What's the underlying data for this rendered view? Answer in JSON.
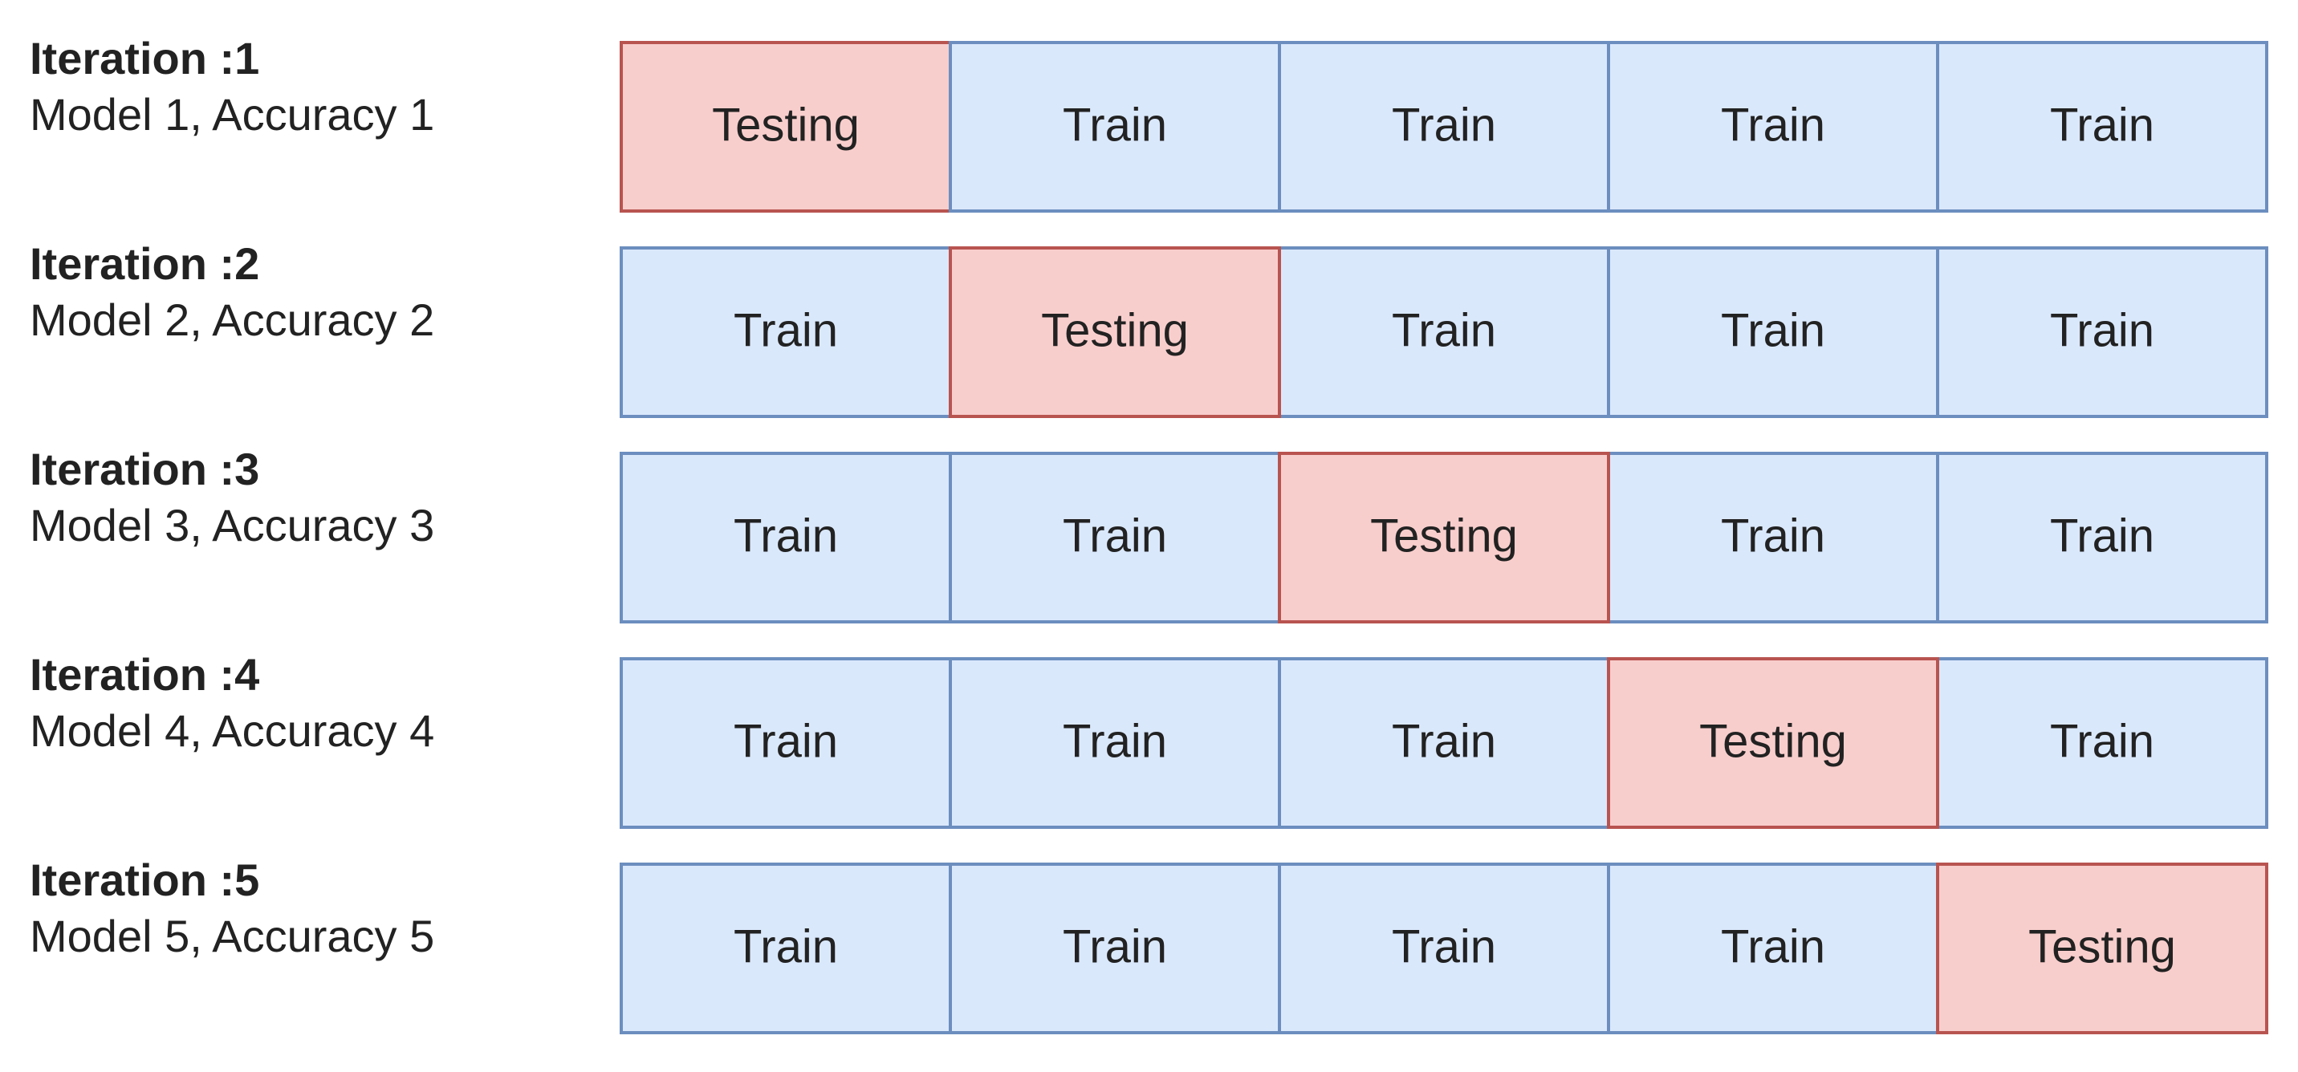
{
  "rows": [
    {
      "title": "Iteration :1",
      "subtitle": "Model 1, Accuracy 1",
      "cells": [
        {
          "text": "Testing",
          "fill": "#f8cecc",
          "stroke": "#b85450"
        },
        {
          "text": "Train",
          "fill": "#dae8fc",
          "stroke": "#6c8ebf"
        },
        {
          "text": "Train",
          "fill": "#dae8fc",
          "stroke": "#6c8ebf"
        },
        {
          "text": "Train",
          "fill": "#dae8fc",
          "stroke": "#6c8ebf"
        },
        {
          "text": "Train",
          "fill": "#dae8fc",
          "stroke": "#6c8ebf"
        }
      ]
    },
    {
      "title": "Iteration :2",
      "subtitle": "Model 2, Accuracy 2",
      "cells": [
        {
          "text": "Train",
          "fill": "#dae8fc",
          "stroke": "#6c8ebf"
        },
        {
          "text": "Testing",
          "fill": "#f8cecc",
          "stroke": "#b85450"
        },
        {
          "text": "Train",
          "fill": "#dae8fc",
          "stroke": "#6c8ebf"
        },
        {
          "text": "Train",
          "fill": "#dae8fc",
          "stroke": "#6c8ebf"
        },
        {
          "text": "Train",
          "fill": "#dae8fc",
          "stroke": "#6c8ebf"
        }
      ]
    },
    {
      "title": "Iteration :3",
      "subtitle": "Model 3, Accuracy 3",
      "cells": [
        {
          "text": "Train",
          "fill": "#dae8fc",
          "stroke": "#6c8ebf"
        },
        {
          "text": "Train",
          "fill": "#dae8fc",
          "stroke": "#6c8ebf"
        },
        {
          "text": "Testing",
          "fill": "#f8cecc",
          "stroke": "#b85450"
        },
        {
          "text": "Train",
          "fill": "#dae8fc",
          "stroke": "#6c8ebf"
        },
        {
          "text": "Train",
          "fill": "#dae8fc",
          "stroke": "#6c8ebf"
        }
      ]
    },
    {
      "title": "Iteration :4",
      "subtitle": "Model 4, Accuracy 4",
      "cells": [
        {
          "text": "Train",
          "fill": "#dae8fc",
          "stroke": "#6c8ebf"
        },
        {
          "text": "Train",
          "fill": "#dae8fc",
          "stroke": "#6c8ebf"
        },
        {
          "text": "Train",
          "fill": "#dae8fc",
          "stroke": "#6c8ebf"
        },
        {
          "text": "Testing",
          "fill": "#f8cecc",
          "stroke": "#b85450"
        },
        {
          "text": "Train",
          "fill": "#dae8fc",
          "stroke": "#6c8ebf"
        }
      ]
    },
    {
      "title": "Iteration :5",
      "subtitle": "Model 5, Accuracy 5",
      "cells": [
        {
          "text": "Train",
          "fill": "#dae8fc",
          "stroke": "#6c8ebf"
        },
        {
          "text": "Train",
          "fill": "#dae8fc",
          "stroke": "#6c8ebf"
        },
        {
          "text": "Train",
          "fill": "#dae8fc",
          "stroke": "#6c8ebf"
        },
        {
          "text": "Train",
          "fill": "#dae8fc",
          "stroke": "#6c8ebf"
        },
        {
          "text": "Testing",
          "fill": "#f8cecc",
          "stroke": "#b85450"
        }
      ]
    }
  ]
}
